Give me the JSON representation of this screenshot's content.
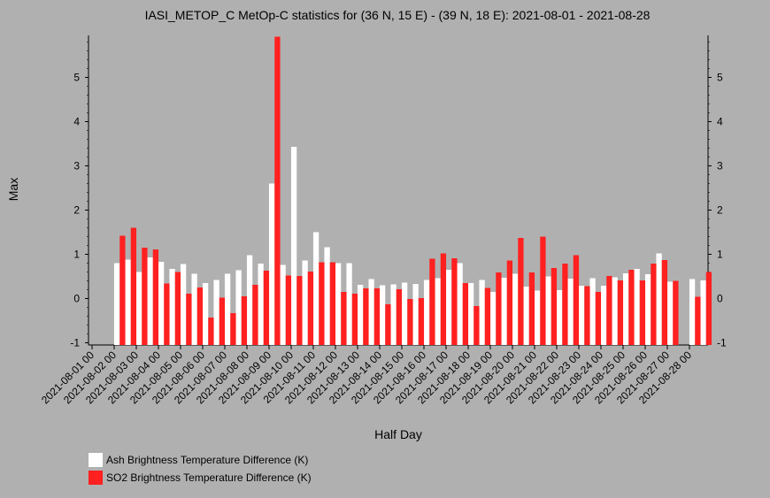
{
  "chart_data": {
    "type": "bar",
    "title": "IASI_METOP_C MetOp-C statistics for (36 N, 15 E) - (39 N, 18 E): 2021-08-01 - 2021-08-28",
    "xlabel": "Half Day",
    "ylabel": "Max",
    "ylim": [
      -1.05,
      5.95
    ],
    "yticks": [
      -1,
      0,
      1,
      2,
      3,
      4,
      5
    ],
    "grid": false,
    "legend_position": "bottom-left",
    "tick_labels": [
      "2021-08-01 00",
      "2021-08-02 00",
      "2021-08-03 00",
      "2021-08-04 00",
      "2021-08-05 00",
      "2021-08-06 00",
      "2021-08-07 00",
      "2021-08-08 00",
      "2021-08-09 00",
      "2021-08-10 00",
      "2021-08-11 00",
      "2021-08-12 00",
      "2021-08-13 00",
      "2021-08-14 00",
      "2021-08-15 00",
      "2021-08-16 00",
      "2021-08-17 00",
      "2021-08-18 00",
      "2021-08-19 00",
      "2021-08-20 00",
      "2021-08-21 00",
      "2021-08-22 00",
      "2021-08-23 00",
      "2021-08-24 00",
      "2021-08-25 00",
      "2021-08-26 00",
      "2021-08-27 00",
      "2021-08-28 00"
    ],
    "series": [
      {
        "name": "Ash Brightness Temperature Difference (K)",
        "color": "#ffffff",
        "values": [
          null,
          null,
          0.8,
          0.88,
          0.6,
          0.93,
          0.83,
          0.67,
          0.78,
          0.56,
          0.35,
          0.42,
          0.56,
          0.64,
          0.98,
          0.79,
          2.6,
          0.76,
          3.43,
          0.86,
          1.5,
          1.16,
          0.8,
          0.8,
          0.31,
          0.44,
          0.3,
          0.32,
          0.36,
          0.33,
          0.42,
          0.46,
          0.65,
          0.8,
          0.35,
          0.42,
          0.15,
          0.47,
          0.56,
          0.27,
          0.18,
          0.5,
          0.19,
          0.45,
          0.29,
          0.46,
          0.29,
          0.48,
          0.57,
          0.67,
          0.55,
          1.02,
          0.38,
          null,
          0.44,
          0.41
        ]
      },
      {
        "name": "SO2 Brightness Temperature Difference (K)",
        "color": "#ff2020",
        "values": [
          null,
          null,
          1.42,
          1.6,
          1.15,
          1.11,
          0.34,
          0.6,
          0.11,
          0.25,
          -0.43,
          0.02,
          -0.33,
          0.05,
          0.31,
          0.63,
          5.92,
          0.52,
          0.51,
          0.61,
          0.82,
          0.82,
          0.15,
          0.11,
          0.23,
          0.23,
          -0.13,
          0.21,
          -0.01,
          0.01,
          0.9,
          1.02,
          0.91,
          0.35,
          -0.17,
          0.24,
          0.59,
          0.86,
          1.37,
          0.59,
          1.4,
          0.69,
          0.79,
          0.98,
          0.28,
          0.15,
          0.51,
          0.41,
          0.65,
          0.41,
          0.79,
          0.87,
          0.4,
          null,
          0.04,
          0.6
        ]
      }
    ]
  }
}
